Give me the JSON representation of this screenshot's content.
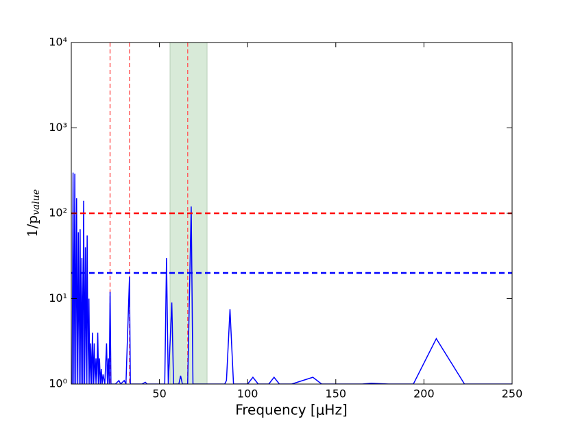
{
  "chart_data": {
    "type": "line",
    "xlabel": "Frequency [μHz]",
    "ylabel": {
      "main": "1/p",
      "sub": "value"
    },
    "log_y": true,
    "xlim": [
      0,
      250
    ],
    "ylim": [
      1,
      10000
    ],
    "xticks": [
      50,
      100,
      150,
      200,
      250
    ],
    "yticks": [
      {
        "value": 1,
        "label": "10⁰"
      },
      {
        "value": 10,
        "label": "10¹"
      },
      {
        "value": 100,
        "label": "10²"
      },
      {
        "value": 1000,
        "label": "10³"
      },
      {
        "value": 10000,
        "label": "10⁴"
      }
    ],
    "x": [
      0.5,
      1,
      1.5,
      2,
      2.5,
      3,
      3.5,
      4,
      4.5,
      5,
      5.5,
      6,
      6.5,
      7,
      7.5,
      8,
      8.5,
      9,
      9.5,
      10,
      10.5,
      11,
      11.5,
      12,
      12.5,
      13,
      13.5,
      14,
      14.5,
      15,
      15.5,
      16,
      16.5,
      17,
      17.5,
      18,
      19,
      20,
      20.5,
      21,
      21.5,
      22,
      22.5,
      25,
      27,
      28,
      30,
      31,
      33,
      33.5,
      40,
      42,
      43,
      53,
      54,
      55,
      57,
      58,
      61,
      62,
      63,
      66,
      68,
      69,
      87,
      88,
      90,
      92,
      100,
      103,
      106,
      112,
      115,
      118,
      125,
      137,
      142,
      165,
      170,
      180,
      194,
      207,
      223,
      250
    ],
    "series": [
      {
        "color": "#0000ff",
        "values": [
          1,
          300,
          1,
          290,
          1,
          150,
          1,
          60,
          1,
          65,
          1,
          30,
          1,
          140,
          1,
          40,
          1,
          55,
          1,
          10,
          1,
          3,
          1,
          4,
          1,
          3,
          1,
          2,
          1,
          4,
          1,
          2,
          1,
          1.5,
          1,
          1.3,
          1,
          3,
          1,
          2,
          1,
          12,
          1,
          1,
          1.1,
          1,
          1.1,
          1,
          18,
          1,
          1,
          1.05,
          1,
          1,
          30,
          1,
          9,
          1,
          1,
          1.25,
          1,
          1,
          120,
          1,
          1,
          1.1,
          7.5,
          1,
          1,
          1.2,
          1,
          1,
          1.2,
          1,
          1,
          1.2,
          1,
          1,
          1.02,
          1,
          1,
          3.4,
          1,
          1
        ]
      }
    ],
    "hlines": [
      {
        "value": 100,
        "color": "#ff0000"
      },
      {
        "value": 20,
        "color": "#0000ff"
      }
    ],
    "vlines": {
      "values": [
        22,
        33,
        66
      ],
      "color": "#ff6060"
    },
    "span": {
      "range": [
        56,
        77
      ],
      "color": "#d8ead8"
    }
  }
}
